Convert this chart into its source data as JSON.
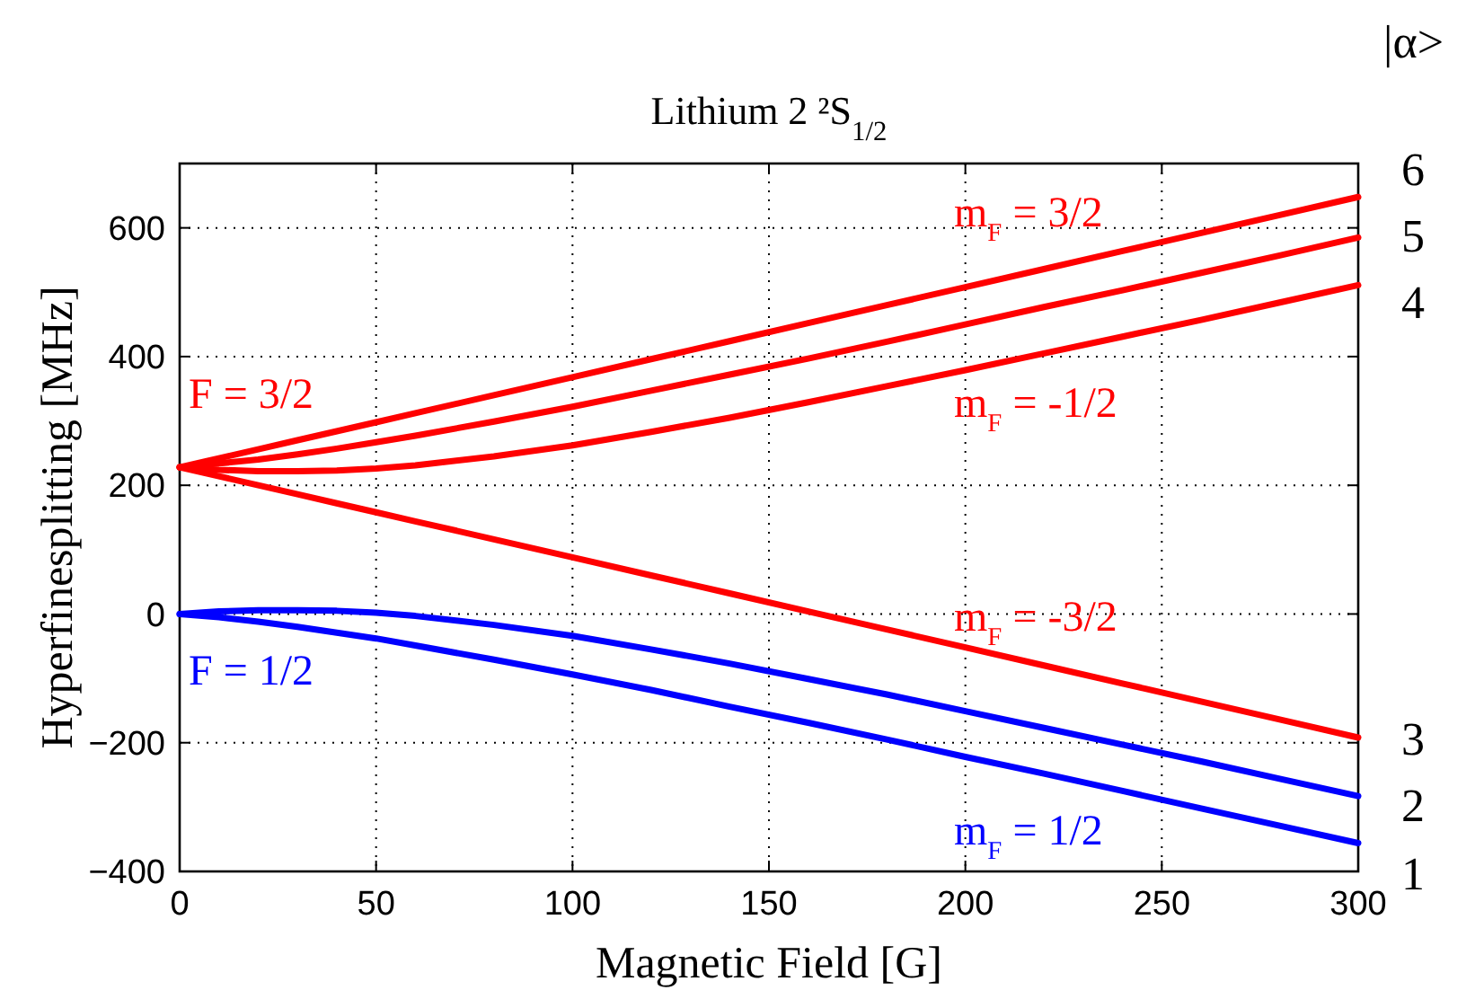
{
  "chart_data": {
    "type": "line",
    "title": "Lithium 2 ²S$_{1/2}$",
    "xlabel": "Magnetic Field [G]",
    "ylabel": "Hyperfinesplitting [MHz]",
    "x": [
      0,
      10,
      20,
      30,
      40,
      50,
      60,
      80,
      100,
      120,
      140,
      160,
      180,
      200,
      220,
      240,
      260,
      280,
      300
    ],
    "series": [
      {
        "color": "#ff0000",
        "values": [
          228,
          242,
          256,
          270,
          284,
          298,
          312,
          340,
          368,
          396,
          424,
          452,
          480,
          508,
          536,
          564,
          592,
          620,
          648
        ]
      },
      {
        "color": "#ff0000",
        "values": [
          228,
          234,
          240,
          248,
          257,
          267,
          277,
          299,
          322,
          347,
          372,
          397,
          423,
          450,
          477,
          503,
          530,
          557,
          585
        ]
      },
      {
        "color": "#ff0000",
        "values": [
          228,
          224,
          222,
          222,
          223,
          226,
          231,
          245,
          262,
          283,
          305,
          329,
          354,
          379,
          405,
          431,
          457,
          484,
          511
        ]
      },
      {
        "color": "#ff0000",
        "values": [
          228,
          214,
          200,
          186,
          172,
          158,
          144,
          116,
          88,
          60,
          32,
          4,
          -24,
          -52,
          -80,
          -108,
          -136,
          -164,
          -192
        ]
      },
      {
        "color": "#0000ff",
        "values": [
          0,
          4,
          6,
          6,
          5,
          2,
          -3,
          -17,
          -34,
          -55,
          -77,
          -101,
          -125,
          -151,
          -177,
          -203,
          -229,
          -256,
          -283
        ]
      },
      {
        "color": "#0000ff",
        "values": [
          0,
          -5,
          -12,
          -20,
          -29,
          -38,
          -49,
          -71,
          -94,
          -118,
          -144,
          -169,
          -195,
          -222,
          -248,
          -275,
          -302,
          -329,
          -356
        ]
      }
    ],
    "xlim": [
      0,
      300
    ],
    "ylim": [
      -400,
      700
    ],
    "xticks": [
      0,
      50,
      100,
      150,
      200,
      250,
      300
    ],
    "yticks": [
      -400,
      -200,
      0,
      200,
      400,
      600
    ],
    "grid": true,
    "line_style": "solid",
    "marker": "none",
    "annotations": [
      "F = 3/2",
      "F = 1/2",
      "m$_{F}$ = 3/2",
      "m$_{F}$ = -1/2",
      "m$_{F}$ = -3/2",
      "m$_{F}$ = 1/2",
      "6",
      "5",
      "4",
      "3",
      "2",
      "1",
      "|α>"
    ]
  }
}
